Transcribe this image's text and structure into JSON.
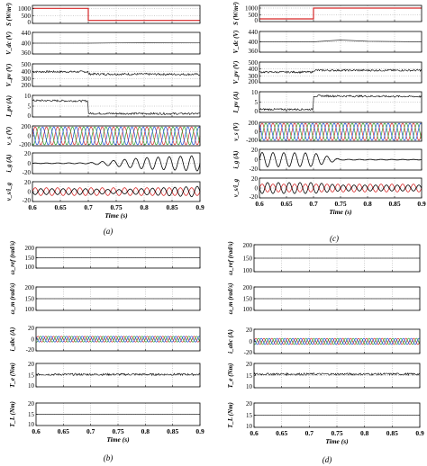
{
  "figure": {
    "subfig_a": "(a)",
    "subfig_b": "(b)",
    "subfig_c": "(c)",
    "subfig_d": "(d)"
  },
  "chart_data": [
    {
      "id": "a",
      "type": "line",
      "caption": "(a)",
      "xlabel": "Time (s)",
      "xlim": [
        0.6,
        0.9
      ],
      "xticks": [
        "0.6",
        "0.65",
        "0.7",
        "0.75",
        "0.8",
        "0.85",
        "0.9"
      ],
      "panels": [
        {
          "ylabel": "S (W/m²)",
          "ylim": [
            0,
            1200
          ],
          "yticks": [
            "1000",
            "500",
            "0"
          ],
          "series": [
            {
              "kind": "step",
              "color": "#d62728",
              "x": [
                0.6,
                0.7,
                0.7,
                0.9
              ],
              "y": [
                1000,
                1000,
                200,
                200
              ]
            }
          ]
        },
        {
          "ylabel": "V_dc (V)",
          "ylim": [
            360,
            440
          ],
          "yticks": [
            "440",
            "400",
            "360"
          ],
          "series": [
            {
              "kind": "line",
              "color": "#333333",
              "x": [
                0.6,
                0.7,
                0.75,
                0.8,
                0.9
              ],
              "y": [
                400,
                400,
                401,
                402,
                401
              ]
            }
          ]
        },
        {
          "ylabel": "V_pv (V)",
          "ylim": [
            200,
            500
          ],
          "yticks": [
            "500",
            "400",
            "300",
            "200"
          ],
          "series": [
            {
              "kind": "noisy",
              "color": "#000000",
              "x": [
                0.6,
                0.7,
                0.7,
                0.9
              ],
              "y": [
                395,
                395,
                365,
                360
              ]
            }
          ]
        },
        {
          "ylabel": "I_pv (A)",
          "ylim": [
            0,
            10
          ],
          "yticks": [
            "10",
            "5",
            "0"
          ],
          "series": [
            {
              "kind": "noisy",
              "color": "#000000",
              "x": [
                0.6,
                0.7,
                0.7,
                0.9
              ],
              "y": [
                7.6,
                7.4,
                1.6,
                1.5
              ]
            }
          ]
        },
        {
          "ylabel": "v_s (V)",
          "ylim": [
            -200,
            200
          ],
          "yticks": [
            "200",
            "0",
            "-200"
          ],
          "series": [
            {
              "kind": "threephase",
              "colors": [
                "#d62728",
                "#2ca02c",
                "#1f4fd8"
              ],
              "amplitude": 180,
              "cycles": 15
            }
          ]
        },
        {
          "ylabel": "i_g (A)",
          "ylim": [
            -20,
            20
          ],
          "yticks": [
            "20",
            "0",
            "-20"
          ],
          "series": [
            {
              "kind": "sine_env",
              "color": "#000000",
              "cycles": 15,
              "env_x": [
                0.6,
                0.7,
                0.8,
                0.9
              ],
              "env_y": [
                0.5,
                1,
                11,
                15
              ]
            }
          ]
        },
        {
          "ylabel": "v_s/i_g",
          "ylim": [
            -20,
            20
          ],
          "yticks": [
            "20",
            "0",
            "-20"
          ],
          "series": [
            {
              "kind": "sine",
              "color": "#d62728",
              "cycles": 15,
              "amplitude": 8,
              "phase": 0
            },
            {
              "kind": "sine_env",
              "color": "#000000",
              "cycles": 15,
              "phase": 3.1416,
              "env_x": [
                0.6,
                0.7,
                0.75,
                0.9
              ],
              "env_y": [
                6,
                6,
                4,
                11
              ]
            }
          ]
        }
      ]
    },
    {
      "id": "b",
      "type": "line",
      "caption": "(b)",
      "xlabel": "Time (s)",
      "xlim": [
        0.6,
        0.9
      ],
      "xticks": [
        "0.6",
        "0.65",
        "0.7",
        "0.75",
        "0.8",
        "0.85",
        "0.9"
      ],
      "panels": [
        {
          "ylabel": "ω_ref (rad/s)",
          "ylim": [
            100,
            200
          ],
          "yticks": [
            "200",
            "150",
            "100"
          ],
          "series": [
            {
              "kind": "line",
              "color": "#333333",
              "x": [
                0.6,
                0.9
              ],
              "y": [
                150,
                150
              ]
            }
          ]
        },
        {
          "ylabel": "ω_m (rad/s)",
          "ylim": [
            100,
            200
          ],
          "yticks": [
            "200",
            "150",
            "100"
          ],
          "series": [
            {
              "kind": "line",
              "color": "#333333",
              "x": [
                0.6,
                0.9
              ],
              "y": [
                150,
                150
              ]
            }
          ]
        },
        {
          "ylabel": "i_abc (A)",
          "ylim": [
            -20,
            20
          ],
          "yticks": [
            "20",
            "0",
            "-20"
          ],
          "series": [
            {
              "kind": "threephase",
              "colors": [
                "#d62728",
                "#2ca02c",
                "#1f4fd8"
              ],
              "amplitude": 5,
              "cycles": 21
            }
          ]
        },
        {
          "ylabel": "T_e (Nm)",
          "ylim": [
            10,
            20
          ],
          "yticks": [
            "20",
            "15",
            "10"
          ],
          "series": [
            {
              "kind": "noisy",
              "color": "#000000",
              "x": [
                0.6,
                0.9
              ],
              "y": [
                15.3,
                15.3
              ]
            }
          ]
        },
        {
          "ylabel": "T_L (Nm)",
          "ylim": [
            10,
            20
          ],
          "yticks": [
            "20",
            "15",
            "10"
          ],
          "series": [
            {
              "kind": "line",
              "color": "#333333",
              "x": [
                0.6,
                0.9
              ],
              "y": [
                15,
                15
              ]
            }
          ]
        }
      ]
    },
    {
      "id": "c",
      "type": "line",
      "caption": "(c)",
      "xlabel": "Time (s)",
      "xlim": [
        0.6,
        0.9
      ],
      "xticks": [
        "0.6",
        "0.65",
        "0.7",
        "0.75",
        "0.8",
        "0.85",
        "0.9"
      ],
      "panels": [
        {
          "ylabel": "S (W/m²)",
          "ylim": [
            0,
            1200
          ],
          "yticks": [
            "1000",
            "500",
            "0"
          ],
          "series": [
            {
              "kind": "step",
              "color": "#d62728",
              "x": [
                0.6,
                0.7,
                0.7,
                0.9
              ],
              "y": [
                200,
                200,
                1000,
                1000
              ]
            }
          ]
        },
        {
          "ylabel": "V_dc (V)",
          "ylim": [
            360,
            440
          ],
          "yticks": [
            "440",
            "400",
            "360"
          ],
          "series": [
            {
              "kind": "line",
              "color": "#333333",
              "x": [
                0.6,
                0.7,
                0.75,
                0.8,
                0.9
              ],
              "y": [
                400,
                400,
                407,
                402,
                400
              ]
            }
          ]
        },
        {
          "ylabel": "V_pv (V)",
          "ylim": [
            200,
            500
          ],
          "yticks": [
            "500",
            "400",
            "300",
            "200"
          ],
          "series": [
            {
              "kind": "noisy",
              "color": "#000000",
              "x": [
                0.6,
                0.7,
                0.7,
                0.9
              ],
              "y": [
                355,
                355,
                380,
                380
              ]
            }
          ]
        },
        {
          "ylabel": "I_pv (A)",
          "ylim": [
            0,
            10
          ],
          "yticks": [
            "10",
            "5",
            "0"
          ],
          "series": [
            {
              "kind": "noisy",
              "color": "#000000",
              "x": [
                0.6,
                0.7,
                0.7,
                0.9
              ],
              "y": [
                1.5,
                1.5,
                8,
                7.7
              ]
            }
          ]
        },
        {
          "ylabel": "v_s (V)",
          "ylim": [
            -200,
            200
          ],
          "yticks": [
            "200",
            "0",
            "-200"
          ],
          "series": [
            {
              "kind": "threephase",
              "colors": [
                "#d62728",
                "#2ca02c",
                "#1f4fd8"
              ],
              "amplitude": 180,
              "cycles": 15
            }
          ]
        },
        {
          "ylabel": "i_g (A)",
          "ylim": [
            -20,
            20
          ],
          "yticks": [
            "20",
            "0",
            "-20"
          ],
          "series": [
            {
              "kind": "sine_env",
              "color": "#000000",
              "cycles": 15,
              "env_x": [
                0.6,
                0.7,
                0.75,
                0.9
              ],
              "env_y": [
                14,
                13,
                0.8,
                0.5
              ]
            }
          ]
        },
        {
          "ylabel": "v_s/i_g",
          "ylim": [
            -20,
            20
          ],
          "yticks": [
            "20",
            "0",
            "-20"
          ],
          "series": [
            {
              "kind": "sine",
              "color": "#d62728",
              "cycles": 15,
              "amplitude": 8,
              "phase": 0
            },
            {
              "kind": "sine_env",
              "color": "#000000",
              "cycles": 15,
              "phase": 3.1416,
              "env_x": [
                0.6,
                0.7,
                0.75,
                0.9
              ],
              "env_y": [
                11,
                11,
                6,
                6
              ]
            }
          ]
        }
      ]
    },
    {
      "id": "d",
      "type": "line",
      "caption": "(d)",
      "xlabel": "Time (s)",
      "xlim": [
        0.6,
        0.9
      ],
      "xticks": [
        "0.6",
        "0.65",
        "0.7",
        "0.75",
        "0.8",
        "0.85",
        "0.9"
      ],
      "panels": [
        {
          "ylabel": "ω_ref (rad/s)",
          "ylim": [
            100,
            200
          ],
          "yticks": [
            "200",
            "150",
            "100"
          ],
          "series": [
            {
              "kind": "line",
              "color": "#333333",
              "x": [
                0.6,
                0.9
              ],
              "y": [
                150,
                150
              ]
            }
          ]
        },
        {
          "ylabel": "ω_m (rad/s)",
          "ylim": [
            100,
            200
          ],
          "yticks": [
            "200",
            "150",
            "100"
          ],
          "series": [
            {
              "kind": "line",
              "color": "#333333",
              "x": [
                0.6,
                0.9
              ],
              "y": [
                150,
                150
              ]
            }
          ]
        },
        {
          "ylabel": "i_abc (A)",
          "ylim": [
            -20,
            20
          ],
          "yticks": [
            "20",
            "0",
            "-20"
          ],
          "series": [
            {
              "kind": "threephase",
              "colors": [
                "#d62728",
                "#2ca02c",
                "#1f4fd8"
              ],
              "amplitude": 5,
              "cycles": 21
            }
          ]
        },
        {
          "ylabel": "T_e (Nm)",
          "ylim": [
            10,
            20
          ],
          "yticks": [
            "20",
            "15",
            "10"
          ],
          "series": [
            {
              "kind": "noisy",
              "color": "#000000",
              "x": [
                0.6,
                0.9
              ],
              "y": [
                15.6,
                15.6
              ]
            }
          ]
        },
        {
          "ylabel": "T_L (Nm)",
          "ylim": [
            10,
            20
          ],
          "yticks": [
            "20",
            "15",
            "10"
          ],
          "series": [
            {
              "kind": "line",
              "color": "#333333",
              "x": [
                0.6,
                0.9
              ],
              "y": [
                15,
                15
              ]
            }
          ]
        }
      ]
    }
  ]
}
